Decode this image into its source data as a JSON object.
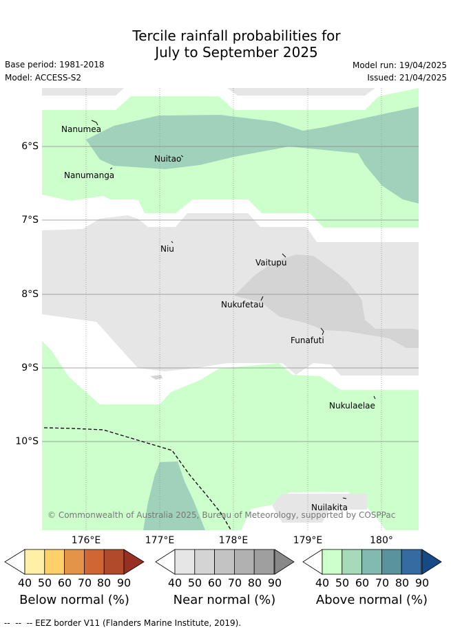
{
  "title_line1": "Tercile rainfall probabilities for",
  "title_line2": "July to September 2025",
  "base_period": "Base period: 1981-2018",
  "model": "Model: ACCESS-S2",
  "model_run": "Model run: 19/04/2025",
  "issued": "Issued: 21/04/2025",
  "lon_labels": [
    "176°E",
    "177°E",
    "178°E",
    "179°E",
    "180°"
  ],
  "lat_labels": [
    "6°S",
    "7°S",
    "8°S",
    "9°S",
    "10°S"
  ],
  "places": {
    "nanumea": "Nanumea",
    "nuitao": "Nuitao",
    "nanumanga": "Nanumanga",
    "niu": "Niu",
    "vaitupu": "Vaitupu",
    "nukufetau": "Nukufetau",
    "funafuti": "Funafuti",
    "nukulaelae": "Nukulaelae",
    "nuilakita": "Nuilakita"
  },
  "copyright": "© Commonwealth of Australia 2025, Bureau of Meteorology, supported by COSPPac",
  "legend": {
    "ticks": [
      "40",
      "50",
      "60",
      "70",
      "80",
      "90"
    ],
    "below_label": "Below normal (%)",
    "near_label": "Near normal (%)",
    "above_label": "Above normal (%)",
    "below_colors": [
      "#fff0a8",
      "#fdd06a",
      "#e49449",
      "#d06634",
      "#b04a2b",
      "#973022"
    ],
    "near_colors": [
      "#e6e6e6",
      "#d4d4d4",
      "#c3c3c3",
      "#b1b1b1",
      "#9f9f9f",
      "#888888"
    ],
    "above_colors": [
      "#ccffcc",
      "#a7dab8",
      "#82bab2",
      "#5a929e",
      "#356ba0",
      "#164a86"
    ]
  },
  "map_colors": {
    "above_40": "#ccffcc",
    "above_50": "#a0d2bb",
    "near_40": "#e6e6e6",
    "near_50": "#d4d4d4"
  },
  "eez_note": "EEZ border V11 (Flanders Marine Institute, 2019)."
}
